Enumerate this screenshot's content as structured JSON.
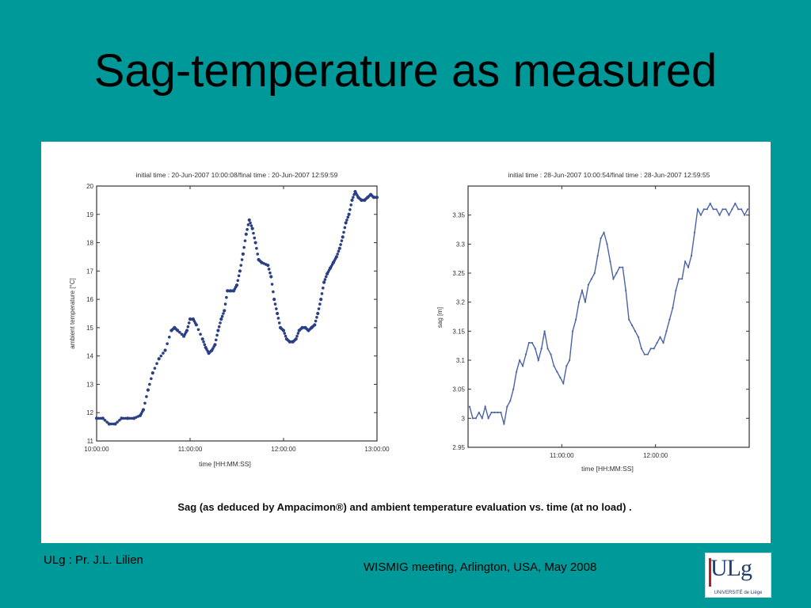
{
  "slide": {
    "title": "Sag-temperature as measured",
    "caption": "Sag (as deduced by Ampacimon®) and ambient temperature evaluation vs. time (at no load) .",
    "footer_left": "ULg : Pr. J.L. Lilien",
    "footer_right": "WISMIG meeting, Arlington, USA, May 2008",
    "logo_text": "ULg",
    "logo_subtext": "UNIVERSITÉ de Liège"
  },
  "colors": {
    "background": "#009999",
    "panel": "#ffffff",
    "temperature_series": "#2b3f86",
    "sag_series": "#4a62a8",
    "axes": "#333333"
  },
  "chart_data": [
    {
      "type": "scatter",
      "title": "initial time : 20-Jun-2007 10:00:08/final time : 20-Jun-2007 12:59:59",
      "xlabel": "time [HH:MM:SS]",
      "ylabel": "ambient temperature [°C]",
      "xtick_labels": [
        "10:00:00",
        "11:00:00",
        "12:00:00",
        "13:00:00"
      ],
      "xtick_values": [
        0,
        60,
        120,
        180
      ],
      "ylim": [
        11,
        20
      ],
      "yticks": [
        11,
        12,
        13,
        14,
        15,
        16,
        17,
        18,
        19,
        20
      ],
      "grid": false,
      "series": [
        {
          "x": [
            0,
            4,
            8,
            12,
            16,
            20,
            24,
            28,
            30,
            33,
            36,
            40,
            44,
            48,
            50,
            52,
            56,
            58,
            60,
            62,
            64,
            68,
            70,
            72,
            74,
            76,
            78,
            80,
            82,
            84,
            86,
            88,
            90,
            92,
            94,
            96,
            98,
            100,
            102,
            104,
            106,
            110,
            112,
            114,
            116,
            118,
            120,
            122,
            124,
            126,
            128,
            130,
            132,
            134,
            136,
            138,
            140,
            142,
            144,
            146,
            148,
            150,
            152,
            154,
            156,
            158,
            160,
            162,
            164,
            166,
            168,
            170,
            172,
            174,
            176,
            178,
            180
          ],
          "y": [
            11.8,
            11.8,
            11.6,
            11.6,
            11.8,
            11.8,
            11.8,
            11.9,
            12.1,
            12.8,
            13.4,
            13.9,
            14.2,
            14.9,
            15.0,
            14.9,
            14.7,
            14.9,
            15.3,
            15.3,
            15.1,
            14.6,
            14.3,
            14.1,
            14.2,
            14.4,
            14.9,
            15.3,
            15.6,
            16.3,
            16.3,
            16.3,
            16.5,
            17.0,
            17.6,
            18.3,
            18.8,
            18.5,
            18.0,
            17.4,
            17.3,
            17.2,
            16.8,
            16.0,
            15.5,
            15.0,
            14.9,
            14.6,
            14.5,
            14.5,
            14.6,
            14.9,
            15.0,
            15.0,
            14.9,
            15.0,
            15.1,
            15.5,
            16.0,
            16.6,
            16.9,
            17.1,
            17.3,
            17.5,
            17.8,
            18.2,
            18.7,
            19.0,
            19.5,
            19.8,
            19.6,
            19.5,
            19.5,
            19.6,
            19.7,
            19.6,
            19.6
          ]
        }
      ]
    },
    {
      "type": "line",
      "title": "initial time : 28-Jun-2007 10:00:54/final time : 28-Jun-2007 12:59:55",
      "xlabel": "time [HH:MM:SS]",
      "ylabel": "sag [m]",
      "xtick_labels": [
        "11:00:00",
        "12:00:00"
      ],
      "xtick_values": [
        60,
        120
      ],
      "ylim": [
        2.95,
        3.4
      ],
      "yticks": [
        2.95,
        3,
        3.05,
        3.1,
        3.15,
        3.2,
        3.25,
        3.3,
        3.35
      ],
      "ytick_labels": [
        "2.95",
        "3",
        "3.05",
        "3.1",
        "3.15",
        "3.2",
        "3.25",
        "3.3",
        "3.35"
      ],
      "grid": false,
      "series": [
        {
          "x": [
            1,
            3,
            5,
            7,
            9,
            11,
            13,
            15,
            17,
            19,
            21,
            23,
            25,
            27,
            29,
            31,
            33,
            35,
            37,
            39,
            41,
            43,
            45,
            47,
            49,
            51,
            53,
            55,
            57,
            59,
            61,
            63,
            65,
            67,
            69,
            71,
            73,
            75,
            77,
            79,
            81,
            83,
            85,
            87,
            89,
            91,
            93,
            95,
            97,
            99,
            101,
            103,
            105,
            107,
            109,
            111,
            113,
            115,
            117,
            119,
            121,
            123,
            125,
            127,
            129,
            131,
            133,
            135,
            137,
            139,
            141,
            143,
            145,
            147,
            149,
            151,
            153,
            155,
            157,
            159,
            161,
            163,
            165,
            167,
            169,
            171,
            173,
            175,
            177,
            179
          ],
          "y": [
            3.02,
            3.0,
            3.0,
            3.01,
            3.0,
            3.02,
            3.0,
            3.01,
            3.01,
            3.01,
            3.01,
            2.99,
            3.02,
            3.03,
            3.05,
            3.08,
            3.1,
            3.09,
            3.11,
            3.13,
            3.13,
            3.12,
            3.1,
            3.12,
            3.15,
            3.12,
            3.11,
            3.09,
            3.08,
            3.07,
            3.06,
            3.09,
            3.1,
            3.15,
            3.17,
            3.2,
            3.22,
            3.2,
            3.23,
            3.24,
            3.25,
            3.28,
            3.31,
            3.32,
            3.3,
            3.27,
            3.24,
            3.25,
            3.26,
            3.26,
            3.22,
            3.17,
            3.16,
            3.15,
            3.14,
            3.12,
            3.11,
            3.11,
            3.12,
            3.12,
            3.13,
            3.14,
            3.13,
            3.15,
            3.17,
            3.19,
            3.22,
            3.24,
            3.24,
            3.27,
            3.26,
            3.28,
            3.32,
            3.36,
            3.35,
            3.36,
            3.36,
            3.37,
            3.36,
            3.36,
            3.35,
            3.36,
            3.36,
            3.35,
            3.36,
            3.37,
            3.36,
            3.36,
            3.35,
            3.36
          ]
        }
      ]
    }
  ]
}
